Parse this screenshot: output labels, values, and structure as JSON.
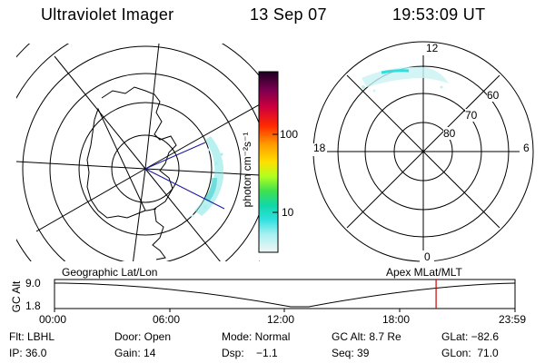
{
  "header": {
    "instrument": "Ultraviolet Imager",
    "date": "13 Sep 07",
    "time": "19:53:09 UT"
  },
  "colorbar": {
    "unit_label": "photon cm⁻²s⁻¹",
    "ticks": [
      "100",
      "10"
    ]
  },
  "right_plot": {
    "mlt_labels": {
      "top": "12",
      "left": "18",
      "right": "6",
      "bottom": "0"
    },
    "lat_labels": [
      "60",
      "70",
      "80"
    ]
  },
  "timeline": {
    "left_title": "Geographic Lat/Lon",
    "right_title": "Apex  MLat/MLT",
    "ylabel": "GC Alt",
    "yticks": [
      "9.0",
      "1.8"
    ],
    "xticks": [
      "00:00",
      "06:00",
      "12:00",
      "18:00",
      "23:59"
    ],
    "marker_time_hours": 19.886,
    "marker_color": "#cc0000"
  },
  "info": {
    "row1": {
      "flt": "Flt: LBHL",
      "door": "Door: Open",
      "mode": "Mode: Normal",
      "gcalt": "GC Alt: 8.7 Re",
      "glat": "GLat: −82.6"
    },
    "row2": {
      "ip": "IP: 36.0",
      "gain": "Gain: 14",
      "dsp": "Dsp:    −1.1",
      "seq": "Seq: 39",
      "glon": "GLon:  71.0"
    }
  }
}
